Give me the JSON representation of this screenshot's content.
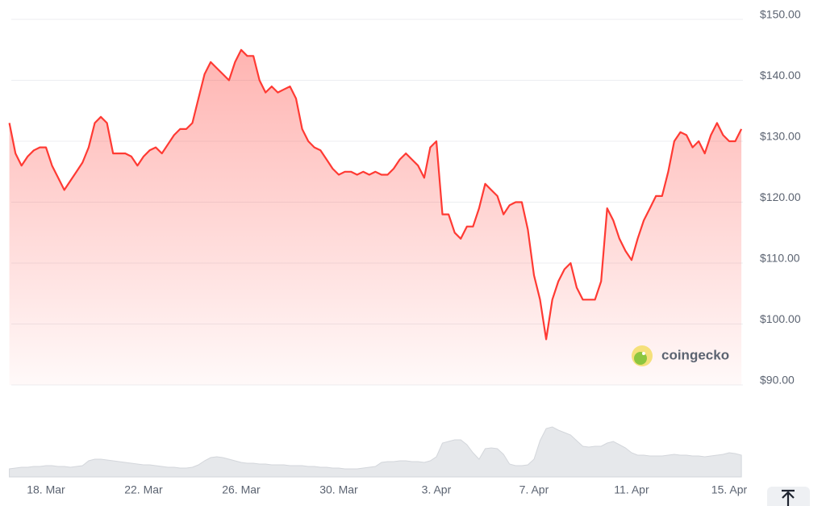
{
  "chart_data": {
    "type": "line",
    "color": "#ff3a33",
    "area": true,
    "grid": true,
    "watermark": "coingecko",
    "ylim": [
      90,
      150
    ],
    "yticks": [
      {
        "value": 90,
        "label": "$90.00"
      },
      {
        "value": 100,
        "label": "$100.00"
      },
      {
        "value": 110,
        "label": "$110.00"
      },
      {
        "value": 120,
        "label": "$120.00"
      },
      {
        "value": 130,
        "label": "$130.00"
      },
      {
        "value": 140,
        "label": "$140.00"
      },
      {
        "value": 150,
        "label": "$150.00"
      }
    ],
    "categories": [
      null,
      null,
      null,
      null,
      null,
      null,
      "18. Mar",
      null,
      null,
      null,
      null,
      null,
      null,
      null,
      null,
      null,
      null,
      null,
      null,
      null,
      null,
      null,
      "22. Mar",
      null,
      null,
      null,
      null,
      null,
      null,
      null,
      null,
      null,
      null,
      null,
      null,
      null,
      null,
      null,
      "26. Mar",
      null,
      null,
      null,
      null,
      null,
      null,
      null,
      null,
      null,
      null,
      null,
      null,
      null,
      null,
      null,
      "30. Mar",
      null,
      null,
      null,
      null,
      null,
      null,
      null,
      null,
      null,
      null,
      null,
      null,
      null,
      null,
      null,
      "3. Apr",
      null,
      null,
      null,
      null,
      null,
      null,
      null,
      null,
      null,
      null,
      null,
      null,
      null,
      null,
      null,
      "7. Apr",
      null,
      null,
      null,
      null,
      null,
      null,
      null,
      null,
      null,
      null,
      null,
      null,
      null,
      null,
      null,
      "11. Apr",
      null,
      null,
      null,
      null,
      null,
      null,
      null,
      null,
      null,
      null,
      null,
      null,
      null,
      null,
      null,
      "15. Apr",
      null,
      null
    ],
    "values": [
      133,
      128,
      126,
      127.5,
      128.5,
      129,
      129,
      126,
      124,
      122,
      123.5,
      125,
      126.5,
      129,
      133,
      134,
      133,
      128,
      128,
      128,
      127.5,
      126,
      127.5,
      128.5,
      129,
      128,
      129.5,
      131,
      132,
      132,
      133,
      137,
      141,
      143,
      142,
      141,
      140,
      143,
      145,
      144,
      144,
      140,
      138,
      139,
      138,
      138.5,
      139,
      137,
      132,
      130,
      129,
      128.5,
      127,
      125.5,
      124.5,
      125,
      125,
      124.5,
      125,
      124.5,
      125,
      124.5,
      124.5,
      125.5,
      127,
      128,
      127,
      126,
      124,
      129,
      130,
      118,
      118,
      115,
      114,
      116,
      116,
      119,
      123,
      122,
      121,
      118,
      119.5,
      120,
      120,
      115.5,
      108,
      104,
      97.5,
      104,
      107,
      109,
      110,
      106,
      104,
      104,
      104,
      107,
      119,
      117,
      114,
      112,
      110.5,
      114,
      117,
      119,
      121,
      121,
      125,
      130,
      131.5,
      131,
      129,
      130,
      128,
      131,
      133,
      131,
      130,
      130,
      132
    ],
    "volume": [
      10,
      11,
      12,
      12,
      13,
      13,
      14,
      14,
      13,
      13,
      12,
      13,
      14,
      20,
      22,
      22,
      21,
      20,
      19,
      18,
      17,
      16,
      15,
      15,
      14,
      13,
      12,
      12,
      11,
      11,
      12,
      15,
      20,
      24,
      25,
      24,
      22,
      20,
      18,
      17,
      17,
      16,
      16,
      15,
      15,
      15,
      14,
      14,
      14,
      13,
      13,
      12,
      12,
      11,
      11,
      10,
      10,
      10,
      11,
      12,
      13,
      18,
      19,
      19,
      20,
      20,
      19,
      19,
      18,
      20,
      25,
      42,
      44,
      46,
      46,
      40,
      30,
      22,
      35,
      36,
      35,
      28,
      16,
      14,
      14,
      15,
      22,
      45,
      60,
      62,
      58,
      55,
      52,
      45,
      38,
      37,
      38,
      38,
      42,
      44,
      40,
      36,
      30,
      27,
      27,
      26,
      26,
      26,
      27,
      28,
      27,
      27,
      26,
      26,
      25,
      26,
      27,
      28,
      30,
      29,
      27
    ]
  }
}
